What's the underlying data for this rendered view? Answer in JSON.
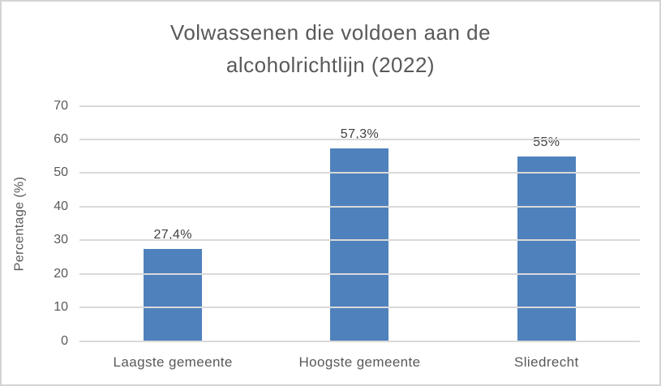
{
  "page": {
    "background": "#ffffff",
    "border_color": "#d4d4d4"
  },
  "chart_data": {
    "type": "bar",
    "title": "Volwassenen die voldoen aan de alcoholrichtlijn (2022)",
    "categories": [
      "Laagste gemeente",
      "Hoogste gemeente",
      "Sliedrecht"
    ],
    "values": [
      27.4,
      57.3,
      55
    ],
    "value_labels": [
      "27,4%",
      "57,3%",
      "55%"
    ],
    "xlabel": "",
    "ylabel": "Percentage (%)",
    "ylim": [
      0,
      70
    ],
    "yticks": [
      0,
      10,
      20,
      30,
      40,
      50,
      60,
      70
    ],
    "grid": "horizontal",
    "legend": "none",
    "bar_color": "#4f81bd",
    "gridline_color": "#d9d9d9",
    "axis_text_color": "#595959",
    "value_label_color": "#404040"
  }
}
